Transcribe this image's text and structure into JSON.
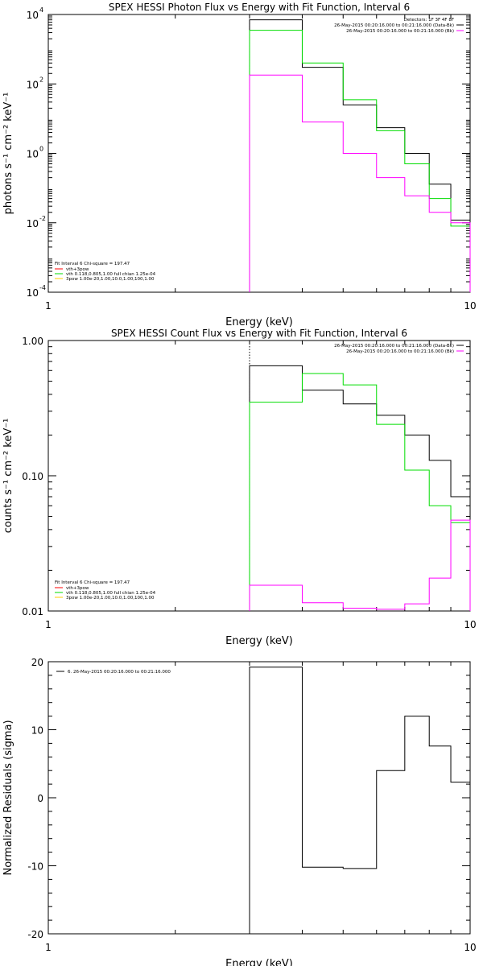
{
  "chart_data": [
    {
      "type": "line",
      "title": "SPEX HESSI Photon Flux vs Energy with Fit Function, Interval 6",
      "xlabel": "Energy (keV)",
      "ylabel": "photons s⁻¹ cm⁻² keV⁻¹",
      "xscale": "log",
      "yscale": "log",
      "xlim": [
        1,
        10
      ],
      "ylim": [
        0.0001,
        10000
      ],
      "xticks": [
        {
          "v": 1,
          "label": "1"
        },
        {
          "v": 10,
          "label": "10"
        }
      ],
      "yticks": [
        {
          "v": 0.0001,
          "base": "10",
          "exp": "-4"
        },
        {
          "v": 0.01,
          "base": "10",
          "exp": "-2"
        },
        {
          "v": 1,
          "base": "10",
          "exp": "0"
        },
        {
          "v": 100,
          "base": "10",
          "exp": "2"
        },
        {
          "v": 10000,
          "base": "10",
          "exp": "4"
        }
      ],
      "fit_start_keV": 3,
      "bin_edges": [
        3,
        4,
        5,
        6,
        7,
        8,
        9,
        10
      ],
      "series": [
        {
          "color": "#000000",
          "values": [
            7000,
            300,
            25,
            5.5,
            1.0,
            0.13,
            0.012
          ]
        },
        {
          "color": "#00dd00",
          "values": [
            3500,
            400,
            35,
            4.5,
            0.5,
            0.05,
            0.008
          ]
        },
        {
          "color": "#ff00ff",
          "values": [
            180,
            8,
            1.0,
            0.2,
            0.06,
            0.02,
            0.01
          ]
        }
      ],
      "legend_top": {
        "header": "Detectors: 1F 3F 4F 8F",
        "entries": [
          {
            "label": "26-May-2015 00:20:16.000 to 00:21:16.000 (Data-Bk)",
            "color": "#000000"
          },
          {
            "label": "26-May-2015 00:20:16.000 to 00:21:16.000 (Bk)",
            "color": "#ff00ff"
          }
        ]
      },
      "legend_bottom": {
        "header": "Fit Interval  6    Chi-square = 197.47",
        "entries": [
          {
            "label": "vth+3pow",
            "color": "#ff0000"
          },
          {
            "label": "vth 0.118,0.805,1.00  full chian 1.25e-04",
            "color": "#00dd00"
          },
          {
            "label": "3pow 1.00e-20,1.00,10.0,1.00,100,1.00",
            "color": "#ffcc00"
          }
        ]
      }
    },
    {
      "type": "line",
      "title": "SPEX HESSI Count Flux vs Energy with Fit Function, Interval 6",
      "xlabel": "Energy (keV)",
      "ylabel": "counts s⁻¹ cm⁻² keV⁻¹",
      "xscale": "log",
      "yscale": "log",
      "xlim": [
        1,
        10
      ],
      "ylim": [
        0.01,
        1.0
      ],
      "xticks": [
        {
          "v": 1,
          "label": "1"
        },
        {
          "v": 10,
          "label": "10"
        }
      ],
      "yticks": [
        {
          "v": 0.01,
          "label": "0.01"
        },
        {
          "v": 0.1,
          "label": "0.10"
        },
        {
          "v": 1.0,
          "label": "1.00"
        }
      ],
      "fit_start_keV": 3,
      "bin_edges": [
        3,
        4,
        5,
        6,
        7,
        8,
        9,
        10
      ],
      "series": [
        {
          "color": "#000000",
          "values": [
            0.65,
            0.43,
            0.34,
            0.28,
            0.2,
            0.13,
            0.07
          ]
        },
        {
          "color": "#00dd00",
          "values": [
            0.35,
            0.57,
            0.47,
            0.24,
            0.11,
            0.06,
            0.045
          ]
        },
        {
          "color": "#ff00ff",
          "values": [
            0.0155,
            0.0115,
            0.0105,
            0.0103,
            0.0113,
            0.0175,
            0.047
          ]
        }
      ],
      "legend_top": {
        "header": "",
        "entries": [
          {
            "label": "26-May-2015 00:20:16.000 to 00:21:16.000 (Data-Bk)",
            "color": "#000000"
          },
          {
            "label": "26-May-2015 00:20:16.000 to 00:21:16.000 (Bk)",
            "color": "#ff00ff"
          }
        ]
      },
      "legend_bottom": {
        "header": "Fit Interval  6    Chi-square = 197.47",
        "entries": [
          {
            "label": "vth+3pow",
            "color": "#ff0000"
          },
          {
            "label": "vth 0.118,0.805,1.00  full chian 1.25e-04",
            "color": "#00dd00"
          },
          {
            "label": "3pow 1.00e-20,1.00,10.0,1.00,100,1.00",
            "color": "#ffcc00"
          }
        ]
      }
    },
    {
      "type": "line",
      "title": "",
      "xlabel": "Energy (keV)",
      "ylabel": "Normalized Residuals (sigma)",
      "xscale": "log",
      "yscale": "linear",
      "xlim": [
        1,
        10
      ],
      "ylim": [
        -20,
        20
      ],
      "xticks": [
        {
          "v": 1,
          "label": "1"
        },
        {
          "v": 10,
          "label": "10"
        }
      ],
      "yticks": [
        {
          "v": -20,
          "label": "-20"
        },
        {
          "v": -10,
          "label": "-10"
        },
        {
          "v": 0,
          "label": "0"
        },
        {
          "v": 10,
          "label": "10"
        },
        {
          "v": 20,
          "label": "20"
        }
      ],
      "bin_edges": [
        3,
        4,
        5,
        6,
        7,
        8,
        9,
        10
      ],
      "series": [
        {
          "color": "#000000",
          "values": [
            19.2,
            -10.2,
            -10.4,
            4.0,
            12.0,
            7.6,
            2.3
          ]
        }
      ],
      "legend_top": {
        "header": "",
        "entries": [
          {
            "label": "6. 26-May-2015 00:20:16.000 to 00:21:16.000",
            "color": "#000000"
          }
        ]
      }
    }
  ]
}
